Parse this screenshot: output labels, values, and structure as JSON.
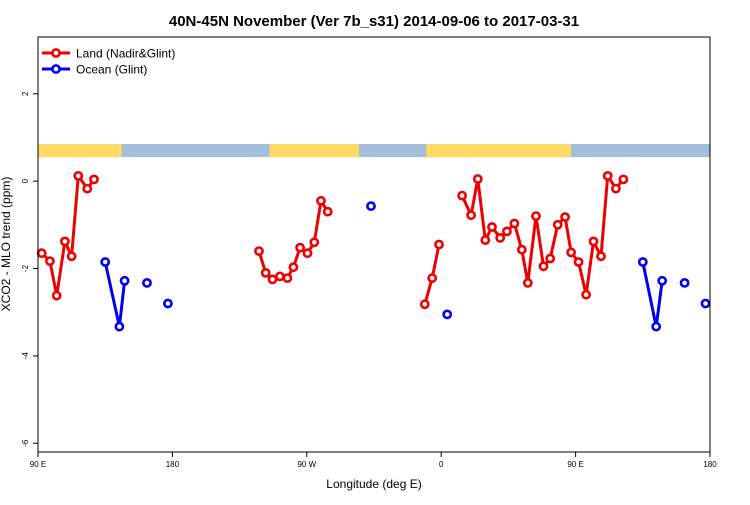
{
  "chart_data": {
    "type": "line",
    "title": "40N-45N November (Ver 7b_s31)   2014-09-06 to 2017-03-31",
    "xlabel": "Longitude (deg E)",
    "ylabel": "XCO2 - MLO trend (ppm)",
    "xlim": [
      90,
      540
    ],
    "ylim": [
      -6.2,
      3.3
    ],
    "x_ticks": [
      {
        "value": 90,
        "label": "90 E"
      },
      {
        "value": 180,
        "label": "180"
      },
      {
        "value": 270,
        "label": "90 W"
      },
      {
        "value": 360,
        "label": "0"
      },
      {
        "value": 450,
        "label": "90 E"
      },
      {
        "value": 540,
        "label": "180"
      }
    ],
    "y_ticks": [
      {
        "value": 2,
        "label": "2"
      },
      {
        "value": 0,
        "label": "0"
      },
      {
        "value": -2,
        "label": "-2"
      },
      {
        "value": -4,
        "label": "-4"
      },
      {
        "value": -6,
        "label": "-6"
      }
    ],
    "legend": {
      "position": "top-left",
      "entries": [
        {
          "label": "Land (Nadir&Glint)",
          "color": "#ee0000"
        },
        {
          "label": "Ocean (Glint)",
          "color": "#0000ee"
        }
      ]
    },
    "landmask": {
      "y_top": 0.85,
      "y_bottom": 0.55,
      "land_color": "#ffd966",
      "ocean_color": "#a3bddb",
      "land_ranges": [
        [
          90,
          146
        ],
        [
          245,
          305
        ],
        [
          350,
          447
        ],
        [
          555,
          600
        ]
      ]
    },
    "series": [
      {
        "name": "Land (Nadir&Glint)",
        "color": "#ee0000",
        "segments": [
          [
            [
              92.5,
              -1.65
            ],
            [
              98,
              -1.83
            ],
            [
              102.5,
              -2.62
            ],
            [
              108,
              -1.38
            ],
            [
              112.5,
              -1.72
            ],
            [
              117,
              0.12
            ],
            [
              123,
              -0.17
            ],
            [
              127.5,
              0.04
            ]
          ],
          [
            [
              238,
              -1.6
            ],
            [
              242.5,
              -2.1
            ],
            [
              247,
              -2.25
            ],
            [
              252,
              -2.18
            ],
            [
              257,
              -2.22
            ],
            [
              261,
              -1.97
            ],
            [
              265.5,
              -1.52
            ],
            [
              270.5,
              -1.65
            ],
            [
              275,
              -1.4
            ],
            [
              279.5,
              -0.45
            ],
            [
              284,
              -0.7
            ]
          ],
          [
            [
              349,
              -2.82
            ],
            [
              354,
              -2.22
            ],
            [
              358.5,
              -1.45
            ]
          ],
          [
            [
              374,
              -0.33
            ],
            [
              380,
              -0.78
            ],
            [
              384.5,
              0.05
            ],
            [
              389.5,
              -1.35
            ],
            [
              394,
              -1.05
            ],
            [
              399.5,
              -1.3
            ],
            [
              404,
              -1.15
            ],
            [
              409,
              -0.97
            ],
            [
              414,
              -1.57
            ],
            [
              418,
              -2.33
            ],
            [
              423.5,
              -0.8
            ],
            [
              428.5,
              -1.95
            ],
            [
              433,
              -1.77
            ],
            [
              438,
              -1.0
            ],
            [
              443,
              -0.82
            ],
            [
              447,
              -1.63
            ],
            [
              452,
              -1.85
            ],
            [
              457,
              -2.6
            ],
            [
              462,
              -1.38
            ],
            [
              467,
              -1.72
            ],
            [
              471.5,
              0.12
            ],
            [
              477,
              -0.17
            ],
            [
              482,
              0.04
            ]
          ]
        ]
      },
      {
        "name": "Ocean (Glint)",
        "color": "#0000ee",
        "segments": [
          [
            [
              135,
              -1.85
            ],
            [
              144.5,
              -3.33
            ],
            [
              148,
              -2.28
            ]
          ],
          [
            [
              163,
              -2.33
            ]
          ],
          [
            [
              177,
              -2.8
            ]
          ],
          [
            [
              313,
              -0.57
            ]
          ],
          [
            [
              364,
              -3.05
            ]
          ],
          [
            [
              495,
              -1.85
            ],
            [
              504,
              -3.33
            ],
            [
              508,
              -2.28
            ]
          ],
          [
            [
              523,
              -2.33
            ]
          ],
          [
            [
              537,
              -2.8
            ]
          ]
        ]
      }
    ]
  }
}
